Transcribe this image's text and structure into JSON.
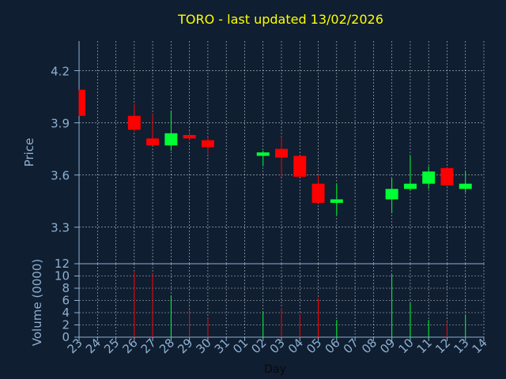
{
  "chart_data": [
    {
      "type": "candlestick",
      "title": "TORO - last updated 13/02/2026",
      "ylabel": "Price",
      "ylim": [
        3.09,
        4.37
      ],
      "yticks": [
        3.3,
        3.6,
        3.9,
        4.2
      ],
      "ytick_labels": [
        "3.3",
        "3.6",
        "3.9",
        "4.2"
      ],
      "grid": true,
      "colors": {
        "up": "#00ff33",
        "down": "#ff0000",
        "grid": "#ffffff",
        "axis": "#8fb0cf",
        "title": "#ffff00",
        "background": "#0f1e31"
      },
      "candles": [
        {
          "day": "23",
          "open": 4.09,
          "high": 4.09,
          "low": 3.94,
          "close": 3.94
        },
        {
          "day": "26",
          "open": 3.94,
          "high": 4.01,
          "low": 3.85,
          "close": 3.86
        },
        {
          "day": "27",
          "open": 3.81,
          "high": 3.95,
          "low": 3.77,
          "close": 3.77
        },
        {
          "day": "28",
          "open": 3.77,
          "high": 3.97,
          "low": 3.74,
          "close": 3.84
        },
        {
          "day": "29",
          "open": 3.83,
          "high": 3.85,
          "low": 3.8,
          "close": 3.81
        },
        {
          "day": "30",
          "open": 3.8,
          "high": 3.82,
          "low": 3.72,
          "close": 3.76
        },
        {
          "day": "02",
          "open": 3.71,
          "high": 3.74,
          "low": 3.65,
          "close": 3.73
        },
        {
          "day": "03",
          "open": 3.75,
          "high": 3.82,
          "low": 3.59,
          "close": 3.7
        },
        {
          "day": "04",
          "open": 3.71,
          "high": 3.71,
          "low": 3.59,
          "close": 3.59
        },
        {
          "day": "05",
          "open": 3.55,
          "high": 3.6,
          "low": 3.44,
          "close": 3.44
        },
        {
          "day": "06",
          "open": 3.44,
          "high": 3.55,
          "low": 3.37,
          "close": 3.46
        },
        {
          "day": "09",
          "open": 3.46,
          "high": 3.58,
          "low": 3.38,
          "close": 3.52
        },
        {
          "day": "10",
          "open": 3.52,
          "high": 3.71,
          "low": 3.51,
          "close": 3.55
        },
        {
          "day": "11",
          "open": 3.55,
          "high": 3.65,
          "low": 3.52,
          "close": 3.62
        },
        {
          "day": "12",
          "open": 3.64,
          "high": 3.64,
          "low": 3.54,
          "close": 3.54
        },
        {
          "day": "13",
          "open": 3.52,
          "high": 3.62,
          "low": 3.5,
          "close": 3.55
        }
      ]
    },
    {
      "type": "bar",
      "ylabel": "Volume (0000)",
      "xlabel": "Day",
      "ylim": [
        0,
        12
      ],
      "yticks": [
        0,
        2,
        4,
        6,
        8,
        10,
        12
      ],
      "ytick_labels": [
        "0",
        "2",
        "4",
        "6",
        "8",
        "10",
        "12"
      ],
      "grid": true,
      "categories": [
        "23",
        "24",
        "25",
        "26",
        "27",
        "28",
        "29",
        "30",
        "31",
        "01",
        "02",
        "03",
        "04",
        "05",
        "06",
        "07",
        "08",
        "09",
        "10",
        "11",
        "12",
        "13",
        "14"
      ],
      "volumes": [
        {
          "day": "23",
          "value": 0.0,
          "direction": "down"
        },
        {
          "day": "26",
          "value": 10.6,
          "direction": "down"
        },
        {
          "day": "27",
          "value": 10.4,
          "direction": "down"
        },
        {
          "day": "28",
          "value": 6.8,
          "direction": "up"
        },
        {
          "day": "29",
          "value": 4.6,
          "direction": "down"
        },
        {
          "day": "30",
          "value": 3.1,
          "direction": "down"
        },
        {
          "day": "02",
          "value": 4.2,
          "direction": "up"
        },
        {
          "day": "03",
          "value": 4.8,
          "direction": "down"
        },
        {
          "day": "04",
          "value": 3.8,
          "direction": "down"
        },
        {
          "day": "05",
          "value": 6.4,
          "direction": "down"
        },
        {
          "day": "06",
          "value": 2.8,
          "direction": "up"
        },
        {
          "day": "09",
          "value": 10.2,
          "direction": "up"
        },
        {
          "day": "10",
          "value": 5.6,
          "direction": "up"
        },
        {
          "day": "11",
          "value": 2.8,
          "direction": "up"
        },
        {
          "day": "12",
          "value": 2.6,
          "direction": "down"
        },
        {
          "day": "13",
          "value": 3.6,
          "direction": "up"
        }
      ]
    }
  ]
}
